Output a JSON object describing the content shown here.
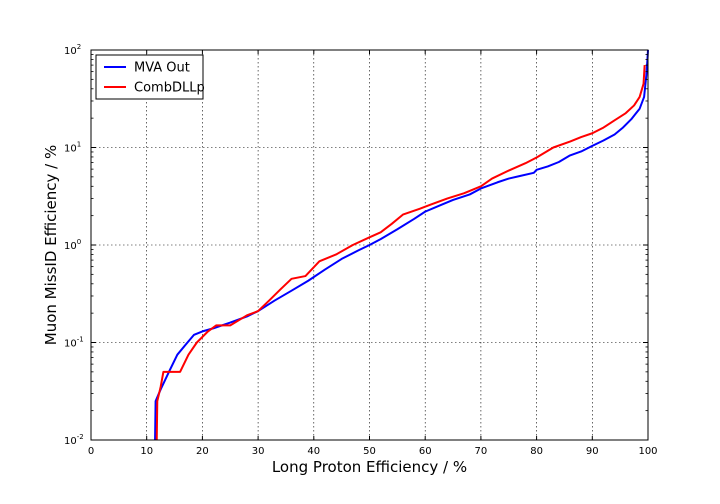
{
  "chart_data": {
    "type": "line",
    "title": "",
    "xlabel": "Long Proton Efficiency / %",
    "ylabel": "Muon MissID Efficiency / %",
    "xlim": [
      0,
      100
    ],
    "ylim": [
      0.01,
      100
    ],
    "yscale": "log",
    "grid": true,
    "legend_position": "top-left",
    "x_ticks": [
      "0",
      "10",
      "20",
      "30",
      "40",
      "50",
      "60",
      "70",
      "80",
      "90",
      "100"
    ],
    "y_ticks": [
      {
        "value": 0.01,
        "base": "10",
        "exp": "-2"
      },
      {
        "value": 0.1,
        "base": "10",
        "exp": "-1"
      },
      {
        "value": 1,
        "base": "10",
        "exp": "0"
      },
      {
        "value": 10,
        "base": "10",
        "exp": "1"
      },
      {
        "value": 100,
        "base": "10",
        "exp": "2"
      }
    ],
    "series": [
      {
        "name": "MVA Out",
        "color": "#0000ff",
        "points": [
          [
            11.5,
            0.01
          ],
          [
            11.6,
            0.025
          ],
          [
            12.5,
            0.033
          ],
          [
            14.0,
            0.05
          ],
          [
            15.5,
            0.075
          ],
          [
            17.0,
            0.095
          ],
          [
            18.5,
            0.12
          ],
          [
            20.0,
            0.13
          ],
          [
            22.0,
            0.14
          ],
          [
            25.0,
            0.16
          ],
          [
            28.0,
            0.185
          ],
          [
            30.0,
            0.21
          ],
          [
            33.0,
            0.27
          ],
          [
            36.0,
            0.34
          ],
          [
            39.0,
            0.43
          ],
          [
            42.0,
            0.56
          ],
          [
            45.0,
            0.72
          ],
          [
            48.0,
            0.88
          ],
          [
            50.0,
            1.0
          ],
          [
            52.0,
            1.15
          ],
          [
            55.0,
            1.45
          ],
          [
            58.0,
            1.85
          ],
          [
            60.0,
            2.2
          ],
          [
            63.0,
            2.6
          ],
          [
            65.0,
            2.9
          ],
          [
            68.0,
            3.3
          ],
          [
            70.0,
            3.8
          ],
          [
            73.0,
            4.4
          ],
          [
            75.0,
            4.8
          ],
          [
            77.0,
            5.1
          ],
          [
            79.5,
            5.5
          ],
          [
            80.0,
            5.9
          ],
          [
            82.0,
            6.4
          ],
          [
            84.0,
            7.1
          ],
          [
            86.0,
            8.3
          ],
          [
            88.0,
            9.1
          ],
          [
            90.0,
            10.4
          ],
          [
            92.0,
            11.8
          ],
          [
            94.0,
            13.6
          ],
          [
            95.5,
            16.0
          ],
          [
            97.0,
            19.5
          ],
          [
            98.5,
            25.0
          ],
          [
            99.3,
            33.0
          ],
          [
            99.7,
            55.0
          ],
          [
            99.9,
            80.0
          ],
          [
            100.0,
            100.0
          ]
        ]
      },
      {
        "name": "CombDLLp",
        "color": "#ff0000",
        "points": [
          [
            11.8,
            0.01
          ],
          [
            11.9,
            0.025
          ],
          [
            12.5,
            0.035
          ],
          [
            13.0,
            0.05
          ],
          [
            14.5,
            0.05
          ],
          [
            16.0,
            0.05
          ],
          [
            17.5,
            0.075
          ],
          [
            19.0,
            0.1
          ],
          [
            21.0,
            0.13
          ],
          [
            22.5,
            0.15
          ],
          [
            25.0,
            0.15
          ],
          [
            28.0,
            0.19
          ],
          [
            30.0,
            0.21
          ],
          [
            32.0,
            0.27
          ],
          [
            34.0,
            0.35
          ],
          [
            36.0,
            0.45
          ],
          [
            38.5,
            0.48
          ],
          [
            41.0,
            0.68
          ],
          [
            44.0,
            0.8
          ],
          [
            47.0,
            1.0
          ],
          [
            50.0,
            1.2
          ],
          [
            52.0,
            1.35
          ],
          [
            54.0,
            1.65
          ],
          [
            56.0,
            2.05
          ],
          [
            59.0,
            2.35
          ],
          [
            61.0,
            2.6
          ],
          [
            64.0,
            3.0
          ],
          [
            67.0,
            3.4
          ],
          [
            70.0,
            4.0
          ],
          [
            72.0,
            4.8
          ],
          [
            75.0,
            5.8
          ],
          [
            78.0,
            6.9
          ],
          [
            80.0,
            7.9
          ],
          [
            83.0,
            10.0
          ],
          [
            86.0,
            11.5
          ],
          [
            88.0,
            12.8
          ],
          [
            90.0,
            14.0
          ],
          [
            92.0,
            16.0
          ],
          [
            94.0,
            19.0
          ],
          [
            96.0,
            22.5
          ],
          [
            97.5,
            27.0
          ],
          [
            98.5,
            33.0
          ],
          [
            99.2,
            45.0
          ],
          [
            99.4,
            70.0
          ]
        ]
      }
    ]
  }
}
